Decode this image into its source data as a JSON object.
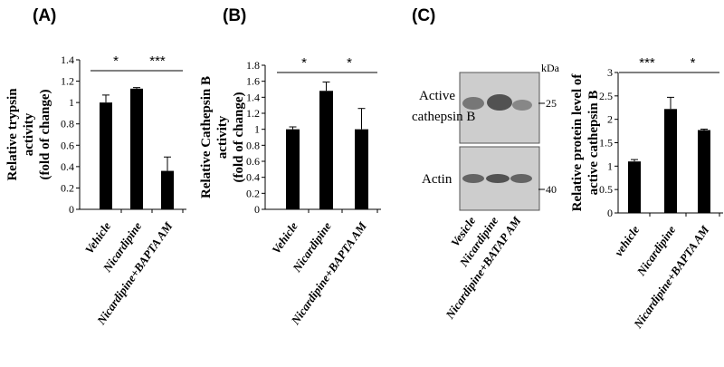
{
  "panels": [
    {
      "letter": "(A)"
    },
    {
      "letter": "(B)"
    },
    {
      "letter": "(C)"
    }
  ],
  "blot": {
    "unit_label": "kDa",
    "markers": [
      "25",
      "40"
    ],
    "band_labels": [
      "Active",
      "cathepsin  B",
      "Actin"
    ],
    "lane_labels": [
      "Vesicle",
      "Nicardipine",
      "Nicardipine+BATAP AM"
    ]
  },
  "colors": {
    "bar": "#000000",
    "axis": "#000000",
    "blot_bg": "#cdcdcd",
    "band": "#3c3c3c"
  },
  "chart_data": [
    {
      "type": "bar",
      "title": "",
      "ylabel_lines": [
        "Relative trypsin",
        "activity",
        "(fold  of change)"
      ],
      "categories": [
        "Vehicle",
        "Nicardipine",
        "Nicardipine+BAPTA AM"
      ],
      "values": [
        1.0,
        1.13,
        0.36
      ],
      "errors": [
        0.07,
        0.01,
        0.13
      ],
      "ylim": [
        0,
        1.4
      ],
      "yticks": [
        "0",
        "0.2",
        "0.4",
        "0.6",
        "0.8",
        "1",
        "1.2",
        "1.4"
      ],
      "significance": [
        {
          "from": 0,
          "to": 1,
          "label": "*"
        },
        {
          "from": 1,
          "to": 2,
          "label": "***"
        }
      ]
    },
    {
      "type": "bar",
      "title": "",
      "ylabel_lines": [
        "Relative Cathepsin  B",
        "activity",
        "(fold of change)"
      ],
      "categories": [
        "Vehicle",
        "Nicardipine",
        "Nicardipine+BAPTA AM"
      ],
      "values": [
        1.0,
        1.48,
        1.0
      ],
      "errors": [
        0.03,
        0.11,
        0.26
      ],
      "ylim": [
        0,
        1.8
      ],
      "yticks": [
        "0",
        "0.2",
        "0.4",
        "0.6",
        "0.8",
        "1",
        "1.2",
        "1.4",
        "1.6",
        "1.8"
      ],
      "significance": [
        {
          "from": 0,
          "to": 1,
          "label": "*"
        },
        {
          "from": 1,
          "to": 2,
          "label": "*"
        }
      ]
    },
    {
      "type": "bar",
      "title": "",
      "ylabel_lines": [
        "Relative protein level of",
        "active cathepsin  B"
      ],
      "categories": [
        "vehicle",
        "Nicardipine",
        "Nicardipine+BAPTA AM"
      ],
      "values": [
        1.1,
        2.22,
        1.77
      ],
      "errors": [
        0.04,
        0.25,
        0.02
      ],
      "ylim": [
        0,
        3
      ],
      "yticks": [
        "0",
        "0.5",
        "1",
        "1.5",
        "2",
        "2.5",
        "3"
      ],
      "significance": [
        {
          "from": 0,
          "to": 1,
          "label": "***"
        },
        {
          "from": 1,
          "to": 2,
          "label": "*"
        }
      ]
    }
  ]
}
